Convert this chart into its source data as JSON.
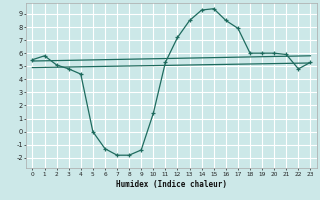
{
  "xlabel": "Humidex (Indice chaleur)",
  "bg_color": "#cce8e8",
  "grid_color": "#ffffff",
  "line_color": "#1e6b5e",
  "xlim": [
    -0.5,
    23.5
  ],
  "ylim": [
    -2.8,
    9.8
  ],
  "xticks": [
    0,
    1,
    2,
    3,
    4,
    5,
    6,
    7,
    8,
    9,
    10,
    11,
    12,
    13,
    14,
    15,
    16,
    17,
    18,
    19,
    20,
    21,
    22,
    23
  ],
  "yticks": [
    -2,
    -1,
    0,
    1,
    2,
    3,
    4,
    5,
    6,
    7,
    8,
    9
  ],
  "series1_x": [
    0,
    1,
    2,
    3,
    4,
    5,
    6,
    7,
    8,
    9,
    10,
    11,
    12,
    13,
    14,
    15,
    16,
    17,
    18,
    19,
    20,
    21,
    22,
    23
  ],
  "series1_y": [
    5.5,
    5.8,
    5.1,
    4.8,
    4.4,
    0.0,
    -1.3,
    -1.8,
    -1.8,
    -1.4,
    1.4,
    5.3,
    7.2,
    8.5,
    9.3,
    9.4,
    8.5,
    7.9,
    6.0,
    6.0,
    6.0,
    5.9,
    4.8,
    5.3
  ],
  "line2_x": [
    0,
    23
  ],
  "line2_y": [
    5.4,
    5.8
  ],
  "line3_x": [
    0,
    23
  ],
  "line3_y": [
    4.9,
    5.25
  ]
}
